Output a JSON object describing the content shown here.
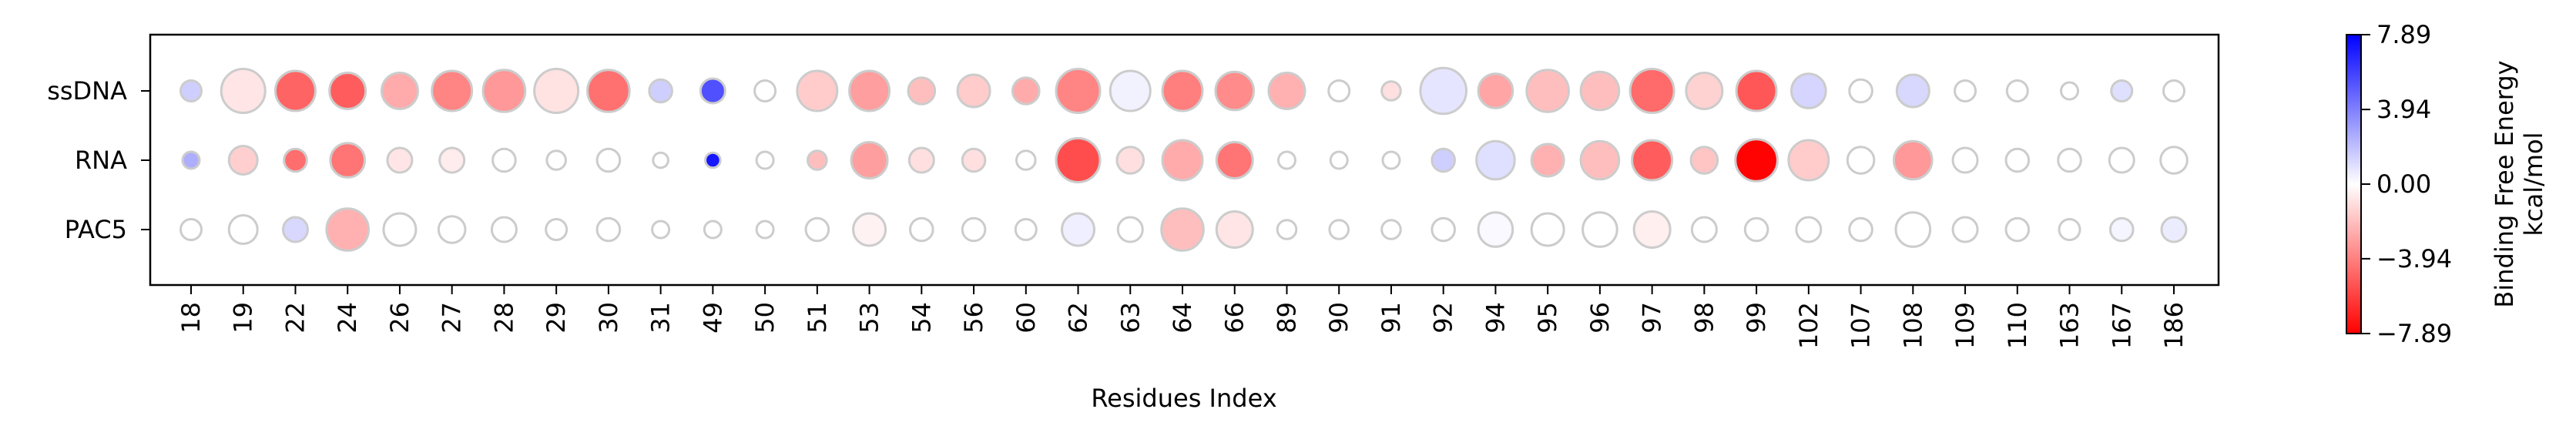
{
  "chart_data": {
    "type": "scatter",
    "subtype": "bubble-heatmap",
    "xlabel": "Residues Index",
    "ylabel": "",
    "categories": [
      "18",
      "19",
      "22",
      "24",
      "26",
      "27",
      "28",
      "29",
      "30",
      "31",
      "49",
      "50",
      "51",
      "53",
      "54",
      "56",
      "60",
      "62",
      "63",
      "64",
      "66",
      "89",
      "90",
      "91",
      "92",
      "94",
      "95",
      "96",
      "97",
      "98",
      "99",
      "102",
      "107",
      "108",
      "109",
      "110",
      "163",
      "167",
      "186"
    ],
    "rows": [
      "ssDNA",
      "RNA",
      "PAC5"
    ],
    "series": [
      {
        "name": "ssDNA",
        "values": [
          1.5,
          -0.8,
          -4.8,
          -5.0,
          -2.6,
          -3.8,
          -3.2,
          -0.9,
          -4.4,
          1.5,
          5.4,
          0.0,
          -1.6,
          -3.0,
          -2.0,
          -1.6,
          -2.6,
          -3.8,
          0.4,
          -4.0,
          -3.6,
          -2.4,
          0.0,
          -1.0,
          0.8,
          -2.8,
          -2.0,
          -2.0,
          -4.6,
          -1.4,
          -5.2,
          1.3,
          0.0,
          1.2,
          0.0,
          0.0,
          0.0,
          1.0,
          0.0
        ],
        "sizes": [
          0.3,
          0.9,
          0.8,
          0.7,
          0.7,
          0.8,
          0.85,
          0.9,
          0.85,
          0.35,
          0.4,
          0.3,
          0.8,
          0.8,
          0.45,
          0.6,
          0.45,
          0.9,
          0.8,
          0.8,
          0.75,
          0.7,
          0.3,
          0.25,
          0.95,
          0.65,
          0.85,
          0.75,
          0.9,
          0.7,
          0.8,
          0.65,
          0.35,
          0.6,
          0.3,
          0.3,
          0.2,
          0.3,
          0.3
        ]
      },
      {
        "name": "RNA",
        "values": [
          2.5,
          -1.5,
          -4.5,
          -4.3,
          -0.8,
          -0.6,
          0.0,
          0.0,
          0.0,
          0.0,
          7.2,
          0.0,
          -2.0,
          -3.0,
          -1.0,
          -1.0,
          0.0,
          -5.5,
          -1.0,
          -2.6,
          -4.3,
          0.0,
          0.0,
          0.0,
          1.5,
          1.0,
          -2.4,
          -2.0,
          -5.0,
          -1.8,
          -7.8,
          -1.6,
          0.0,
          -3.2,
          0.0,
          0.0,
          0.0,
          0.0,
          0.0
        ],
        "sizes": [
          0.2,
          0.5,
          0.35,
          0.65,
          0.4,
          0.4,
          0.35,
          0.25,
          0.35,
          0.15,
          0.15,
          0.2,
          0.25,
          0.7,
          0.4,
          0.35,
          0.25,
          0.9,
          0.45,
          0.8,
          0.7,
          0.2,
          0.2,
          0.2,
          0.35,
          0.75,
          0.6,
          0.75,
          0.8,
          0.45,
          0.85,
          0.8,
          0.45,
          0.75,
          0.4,
          0.35,
          0.35,
          0.4,
          0.45
        ]
      },
      {
        "name": "PAC5",
        "values": [
          0.0,
          0.0,
          1.2,
          -2.4,
          0.0,
          0.0,
          0.0,
          0.0,
          0.0,
          0.0,
          0.0,
          0.0,
          0.0,
          -0.4,
          0.0,
          0.0,
          0.0,
          0.5,
          0.0,
          -2.0,
          -0.8,
          0.0,
          0.0,
          0.0,
          0.0,
          0.2,
          0.0,
          0.0,
          -0.5,
          0.0,
          0.0,
          0.0,
          0.0,
          0.0,
          0.0,
          0.0,
          0.0,
          0.3,
          0.6
        ],
        "sizes": [
          0.3,
          0.5,
          0.4,
          0.85,
          0.6,
          0.45,
          0.4,
          0.3,
          0.35,
          0.2,
          0.2,
          0.2,
          0.35,
          0.6,
          0.35,
          0.35,
          0.3,
          0.6,
          0.4,
          0.85,
          0.7,
          0.25,
          0.25,
          0.25,
          0.35,
          0.65,
          0.6,
          0.65,
          0.7,
          0.4,
          0.35,
          0.4,
          0.35,
          0.65,
          0.4,
          0.35,
          0.3,
          0.35,
          0.4
        ]
      }
    ],
    "colorbar": {
      "label_line1": "Binding Free Energy",
      "label_line2": "kcal/mol",
      "range": [
        -7.89,
        7.89
      ],
      "ticks": [
        "7.89",
        "3.94",
        "0.00",
        "−3.94",
        "−7.89"
      ],
      "tick_values": [
        7.89,
        3.94,
        0.0,
        -3.94,
        -7.89
      ],
      "colormap": "bwr_r",
      "colors": {
        "low": "#ff0000",
        "mid": "#ffffff",
        "high": "#0000ff"
      }
    },
    "grid": false,
    "marker_edge_color": "#cccccc"
  }
}
